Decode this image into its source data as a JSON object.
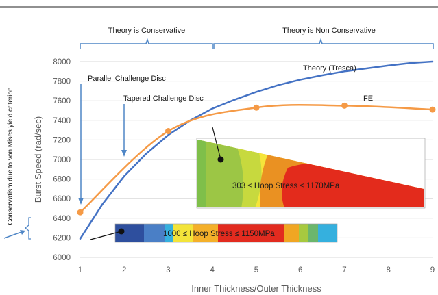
{
  "colors": {
    "theory_line": "#4472c4",
    "fe_line": "#f59a46",
    "bracket": "#4f86c6",
    "grid": "#d9d9d9",
    "axis_text": "#595959"
  },
  "regions": {
    "conservative": "Theory is Conservative",
    "non_conservative": "Theory is Non Conservative"
  },
  "side_note": "Conservatism due to von Mises yield criterion",
  "insets": {
    "tapered_label": "303 ≤ Hoop Stress ≤ 1170MPa",
    "parallel_label": "1000 ≤ Hoop Stress ≤ 1150MPa"
  },
  "chart_data": {
    "type": "line",
    "xlabel": "Inner Thickness/Outer Thickness",
    "ylabel": "Burst Speed (rad/sec)",
    "xlim": [
      1,
      9
    ],
    "ylim": [
      6000,
      8000
    ],
    "xticks": [
      1,
      2,
      3,
      4,
      5,
      6,
      7,
      8,
      9
    ],
    "yticks": [
      6000,
      6200,
      6400,
      6600,
      6800,
      7000,
      7200,
      7400,
      7600,
      7800,
      8000
    ],
    "grid": "horizontal",
    "series": [
      {
        "name": "Theory (Tresca)",
        "color": "#4472c4",
        "markers": false,
        "x": [
          1,
          1.5,
          2,
          2.5,
          3,
          3.5,
          4,
          4.5,
          5,
          5.5,
          6,
          6.5,
          7,
          7.5,
          8,
          8.5,
          9
        ],
        "y": [
          6190,
          6540,
          6830,
          7060,
          7250,
          7400,
          7520,
          7610,
          7690,
          7760,
          7815,
          7860,
          7900,
          7930,
          7960,
          7985,
          8000
        ]
      },
      {
        "name": "FE",
        "color": "#f59a46",
        "markers": true,
        "x": [
          1,
          3,
          5,
          7,
          9
        ],
        "y": [
          6460,
          7290,
          7530,
          7550,
          7510
        ]
      }
    ],
    "annotations": [
      "Parallel Challenge Disc",
      "Tapered Challenge Disc"
    ]
  }
}
